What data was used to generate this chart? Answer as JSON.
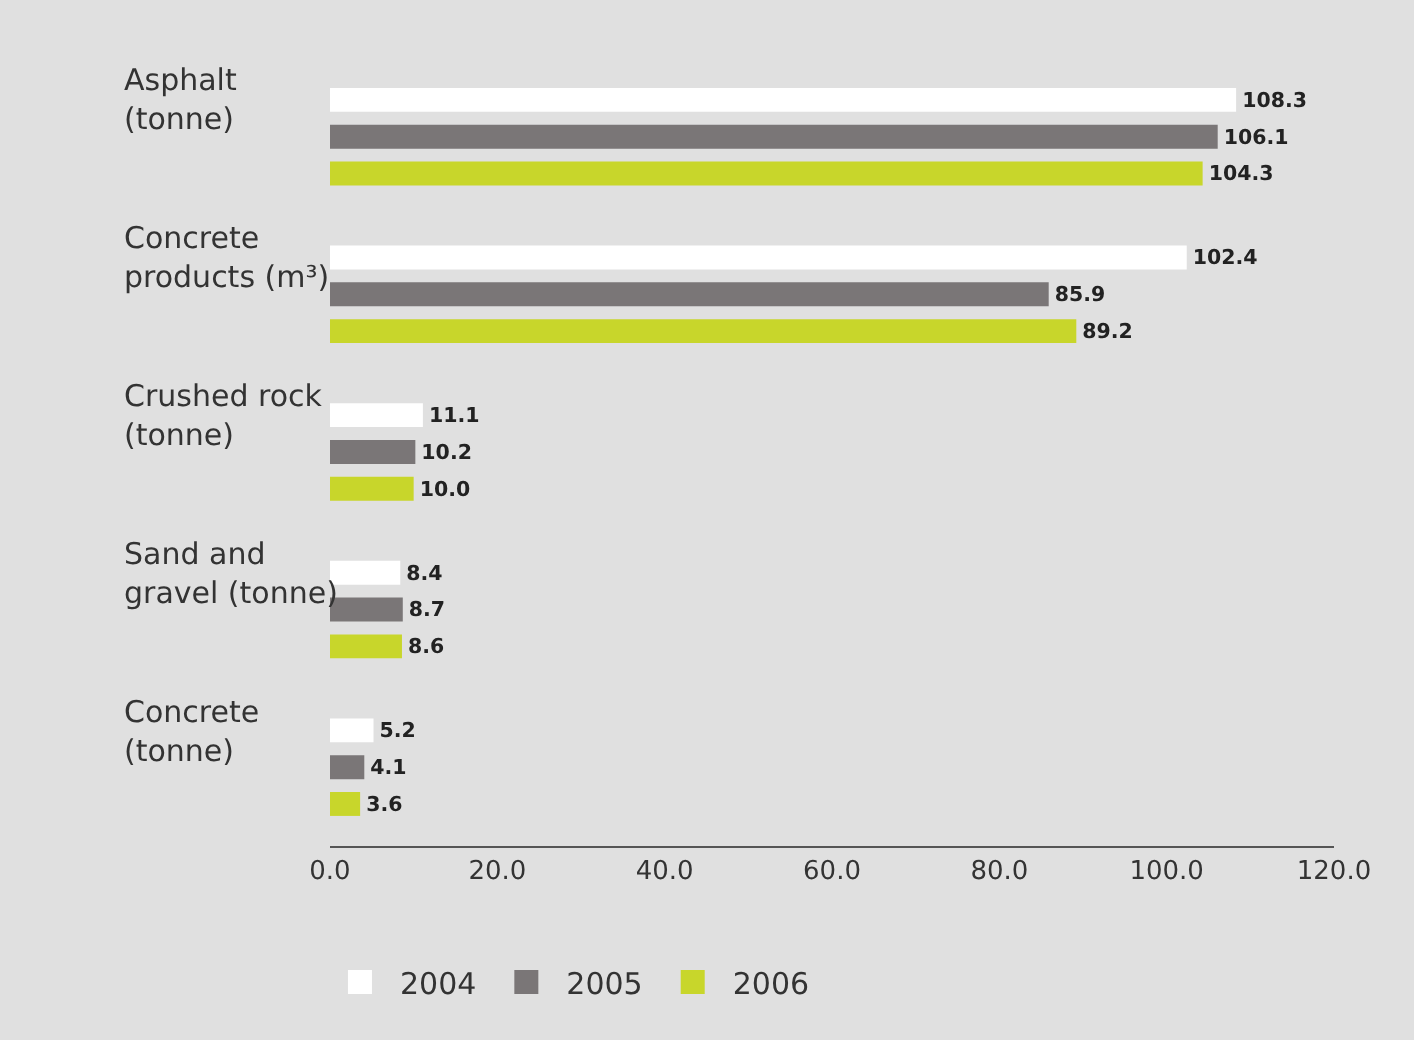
{
  "chart_data": {
    "type": "bar",
    "orientation": "horizontal",
    "categories": [
      "Asphalt\n(tonne)",
      "Concrete\nproducts (m³)",
      "Crushed rock\n(tonne)",
      "Sand and\ngravel (tonne)",
      "Concrete\n(tonne)"
    ],
    "series": [
      {
        "name": "2004",
        "color": "#ffffff",
        "values": [
          108.3,
          102.4,
          11.1,
          8.4,
          5.2
        ],
        "value_labels": [
          "108.3",
          "102.4",
          "11.1",
          "8.4",
          "5.2"
        ]
      },
      {
        "name": "2005",
        "color": "#7a7677",
        "values": [
          106.1,
          85.9,
          10.2,
          8.7,
          4.1
        ],
        "value_labels": [
          "106.1",
          "85.9",
          "10.2",
          "8.7",
          "4.1"
        ]
      },
      {
        "name": "2006",
        "color": "#c8d62b",
        "values": [
          104.3,
          89.2,
          10.0,
          8.6,
          3.6
        ],
        "value_labels": [
          "104.3",
          "89.2",
          "10.0",
          "8.6",
          "3.6"
        ]
      }
    ],
    "xlim": [
      0,
      120
    ],
    "xticks": [
      {
        "value": 0,
        "label": "0.0"
      },
      {
        "value": 20,
        "label": "20.0"
      },
      {
        "value": 40,
        "label": "40.0"
      },
      {
        "value": 60,
        "label": "60.0"
      },
      {
        "value": 80,
        "label": "80.0"
      },
      {
        "value": 100,
        "label": "100.0"
      },
      {
        "value": 120,
        "label": "120.0"
      }
    ],
    "grid": false,
    "legend": "bottom left"
  }
}
